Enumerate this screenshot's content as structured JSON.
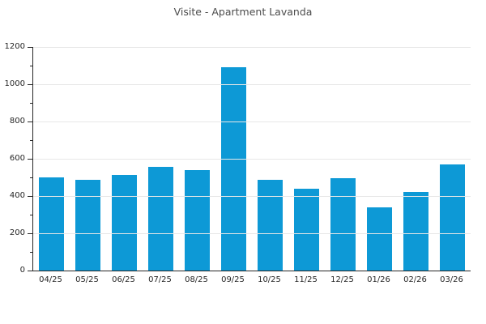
{
  "title": "Visite - Apartment Lavanda",
  "colors": {
    "bar": "#0d99d6",
    "grid": "#e7e7e7",
    "axis": "#262626",
    "tick_label": "#262626",
    "title": "#4c4c4c",
    "background": "#ffffff"
  },
  "chart_data": {
    "type": "bar",
    "title": "Visite - Apartment Lavanda",
    "categories": [
      "04/25",
      "05/25",
      "06/25",
      "07/25",
      "08/25",
      "09/25",
      "10/25",
      "11/25",
      "12/25",
      "01/26",
      "02/26",
      "03/26"
    ],
    "values": [
      500,
      485,
      515,
      555,
      540,
      1090,
      485,
      440,
      495,
      340,
      420,
      570
    ],
    "xlabel": "",
    "ylabel": "",
    "ylim": [
      0,
      1200
    ],
    "yticks": [
      0,
      200,
      400,
      600,
      800,
      1000,
      1200
    ],
    "y_minor_tick_step": 100,
    "grid": "horizontal",
    "legend": "none"
  }
}
